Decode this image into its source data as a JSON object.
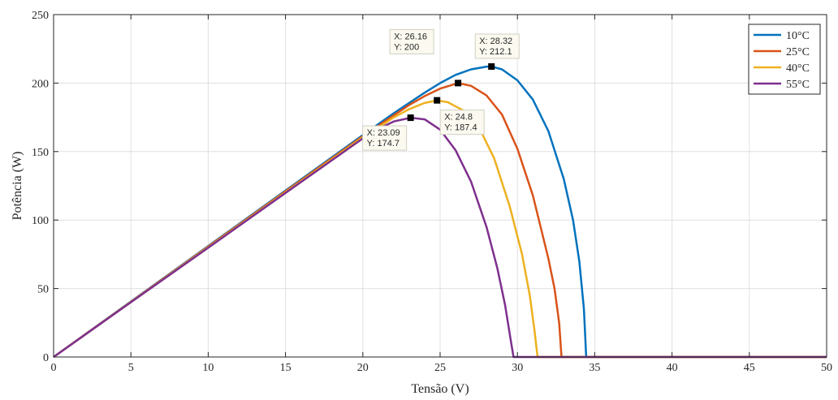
{
  "chart_data": {
    "type": "line",
    "xlabel": "Tensão (V)",
    "ylabel": "Potência (W)",
    "xlim": [
      0,
      50
    ],
    "ylim": [
      0,
      250
    ],
    "xticks": [
      0,
      5,
      10,
      15,
      20,
      25,
      30,
      35,
      40,
      45,
      50
    ],
    "yticks": [
      0,
      50,
      100,
      150,
      200,
      250
    ],
    "grid": true,
    "legend_position": "top-right",
    "series": [
      {
        "name": "10°C",
        "color": "#0072BD",
        "x": [
          0,
          5,
          10,
          15,
          20,
          22,
          24,
          25,
          26,
          27,
          28,
          28.32,
          29,
          30,
          31,
          32,
          33,
          33.6,
          34,
          34.3,
          34.45,
          34.6,
          40,
          45,
          50
        ],
        "y": [
          0,
          40.5,
          81,
          121.5,
          162,
          178,
          193,
          200,
          206,
          210,
          212,
          212.1,
          210,
          202,
          188,
          165,
          130,
          100,
          70,
          35,
          0,
          0,
          0,
          0,
          0
        ]
      },
      {
        "name": "25°C",
        "color": "#D95319",
        "x": [
          0,
          5,
          10,
          15,
          20,
          22,
          23,
          24,
          25,
          26.16,
          27,
          28,
          29,
          30,
          31,
          32,
          32.4,
          32.7,
          32.85,
          33,
          40,
          45,
          50
        ],
        "y": [
          0,
          40.3,
          80.6,
          121,
          161.2,
          176.5,
          184,
          190.5,
          196,
          200,
          198,
          191,
          177,
          152,
          118,
          72,
          50,
          25,
          0,
          0,
          0,
          0,
          0
        ]
      },
      {
        "name": "40°C",
        "color": "#EDB120",
        "x": [
          0,
          5,
          10,
          15,
          20,
          21,
          22,
          23,
          24,
          24.8,
          25.5,
          26.5,
          27.5,
          28.5,
          29.5,
          30.3,
          30.8,
          31.1,
          31.3,
          31.5,
          40,
          45,
          50
        ],
        "y": [
          0,
          40.1,
          80.2,
          120.3,
          160.4,
          167.5,
          175,
          181,
          185.5,
          187.4,
          186,
          180,
          168,
          145,
          110,
          75,
          45,
          20,
          0,
          0,
          0,
          0,
          0
        ]
      },
      {
        "name": "55°C",
        "color": "#7E2F8E",
        "x": [
          0,
          5,
          10,
          15,
          20,
          21,
          22,
          23.09,
          24,
          25,
          26,
          27,
          28,
          28.7,
          29.2,
          29.6,
          29.75,
          30,
          40,
          45,
          50
        ],
        "y": [
          0,
          40,
          79.8,
          119.8,
          159.6,
          166.5,
          172,
          174.7,
          173.5,
          166,
          151,
          128,
          95,
          65,
          38,
          10,
          0,
          0,
          0,
          0,
          0
        ]
      }
    ],
    "datatips": [
      {
        "series": "10°C",
        "x": 28.32,
        "y": 212.1,
        "x_text": "X: 28.32",
        "y_text": "Y: 212.1"
      },
      {
        "series": "25°C",
        "x": 26.16,
        "y": 200,
        "x_text": "X: 26.16",
        "y_text": "Y: 200"
      },
      {
        "series": "40°C",
        "x": 24.8,
        "y": 187.4,
        "x_text": "X: 24.8",
        "y_text": "Y: 187.4"
      },
      {
        "series": "55°C",
        "x": 23.09,
        "y": 174.7,
        "x_text": "X: 23.09",
        "y_text": "Y: 174.7"
      }
    ]
  }
}
